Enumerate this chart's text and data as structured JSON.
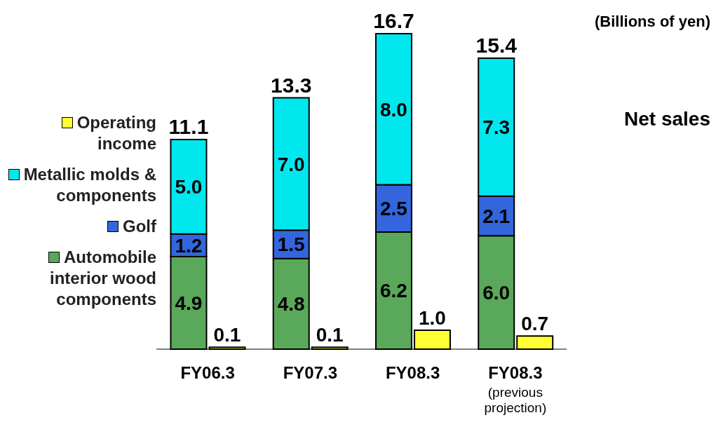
{
  "chart_data": {
    "type": "bar",
    "stacked": true,
    "categories": [
      "FY06.3",
      "FY07.3",
      "FY08.3",
      "FY08.3 (previous projection)"
    ],
    "series": [
      {
        "name": "Automobile interior wood components",
        "color": "#5aa85a",
        "values": [
          4.9,
          4.8,
          6.2,
          6.0
        ],
        "value_labels": [
          "4.9",
          "4.8",
          "6.2",
          "6.0"
        ]
      },
      {
        "name": "Golf",
        "color": "#3366dd",
        "values": [
          1.2,
          1.5,
          2.5,
          2.1
        ],
        "value_labels": [
          "1.2",
          "1.5",
          "2.5",
          "2.1"
        ]
      },
      {
        "name": "Metallic molds & components",
        "color": "#00e8ee",
        "values": [
          5.0,
          7.0,
          8.0,
          7.3
        ],
        "value_labels": [
          "5.0",
          "7.0",
          "8.0",
          "7.3"
        ]
      },
      {
        "name": "Operating income",
        "color": "#ffff33",
        "axis": "y2",
        "values": [
          0.1,
          0.1,
          1.0,
          0.7
        ],
        "value_labels": [
          "0.1",
          "0.1",
          "1.0",
          "0.7"
        ]
      }
    ],
    "totals": [
      "11.1",
      "13.3",
      "16.7",
      "15.4"
    ],
    "legend": "left",
    "tick_labels": "x",
    "annotations": [
      "(Billions of yen)",
      "Net sales"
    ]
  }
}
